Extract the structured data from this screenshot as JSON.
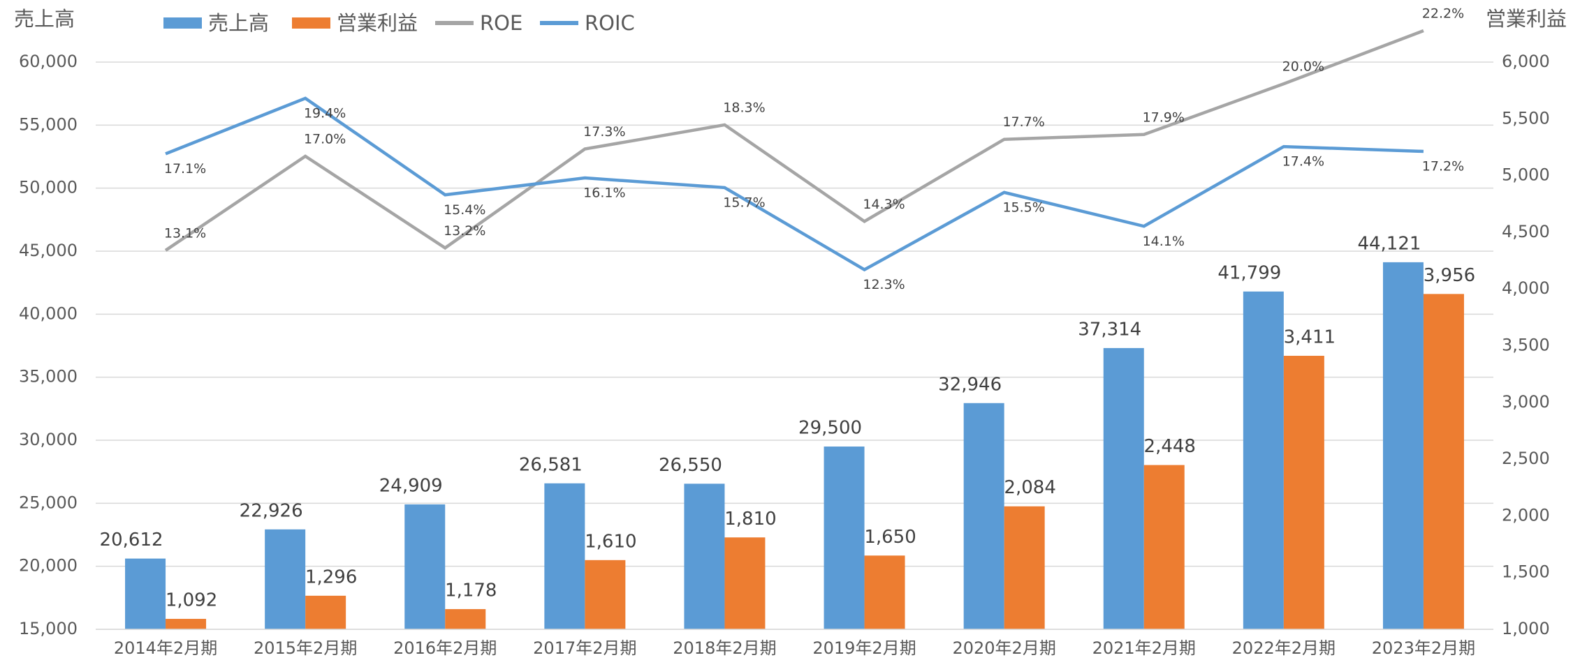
{
  "chart_data": {
    "type": "bar",
    "y_title": "売上高",
    "y2_title": "営業利益",
    "categories": [
      "2014年2月期",
      "2015年2月期",
      "2016年2月期",
      "2017年2月期",
      "2018年2月期",
      "2019年2月期",
      "2020年2月期",
      "2021年2月期",
      "2022年2月期",
      "2023年2月期"
    ],
    "series": [
      {
        "name": "売上高",
        "type": "bar",
        "axis": "y",
        "color": "#5b9bd5",
        "values": [
          20612,
          22926,
          24909,
          26581,
          26550,
          29500,
          32946,
          37314,
          41799,
          44121
        ],
        "value_labels": [
          "20,612",
          "22,926",
          "24,909",
          "26,581",
          "26,550",
          "29,500",
          "32,946",
          "37,314",
          "41,799",
          "44,121"
        ]
      },
      {
        "name": "営業利益",
        "type": "bar",
        "axis": "y2",
        "color": "#ed7d31",
        "values": [
          1092,
          1296,
          1178,
          1610,
          1810,
          1650,
          2084,
          2448,
          3411,
          3956
        ],
        "value_labels": [
          "1,092",
          "1,296",
          "1,178",
          "1,610",
          "1,810",
          "1,650",
          "2,084",
          "2,448",
          "3,411",
          "3,956"
        ]
      },
      {
        "name": "ROE",
        "type": "line",
        "axis": "y3",
        "color": "#a5a5a5",
        "values": [
          13.1,
          17.0,
          13.2,
          17.3,
          18.3,
          14.3,
          17.7,
          17.9,
          20.0,
          22.2
        ],
        "value_labels": [
          "13.1%",
          "17.0%",
          "13.2%",
          "17.3%",
          "18.3%",
          "14.3%",
          "17.7%",
          "17.9%",
          "20.0%",
          "22.2%"
        ]
      },
      {
        "name": "ROIC",
        "type": "line",
        "axis": "y3",
        "color": "#5b9bd5",
        "values": [
          17.1,
          19.4,
          15.4,
          16.1,
          15.7,
          12.3,
          15.5,
          14.1,
          17.4,
          17.2
        ],
        "value_labels": [
          "17.1%",
          "19.4%",
          "15.4%",
          "16.1%",
          "15.7%",
          "12.3%",
          "15.5%",
          "14.1%",
          "17.4%",
          "17.2%"
        ]
      }
    ],
    "ylim": [
      15000,
      60000
    ],
    "yticks": [
      {
        "value": 15000,
        "label": "15,000"
      },
      {
        "value": 20000,
        "label": "20,000"
      },
      {
        "value": 25000,
        "label": "25,000"
      },
      {
        "value": 30000,
        "label": "30,000"
      },
      {
        "value": 35000,
        "label": "35,000"
      },
      {
        "value": 40000,
        "label": "40,000"
      },
      {
        "value": 45000,
        "label": "45,000"
      },
      {
        "value": 50000,
        "label": "50,000"
      },
      {
        "value": 55000,
        "label": "55,000"
      },
      {
        "value": 60000,
        "label": "60,000"
      }
    ],
    "y2lim": [
      1000,
      6000
    ],
    "y2ticks": [
      {
        "value": 1000,
        "label": "1,000"
      },
      {
        "value": 1500,
        "label": "1,500"
      },
      {
        "value": 2000,
        "label": "2,000"
      },
      {
        "value": 2500,
        "label": "2,500"
      },
      {
        "value": 3000,
        "label": "3,000"
      },
      {
        "value": 3500,
        "label": "3,500"
      },
      {
        "value": 4000,
        "label": "4,000"
      },
      {
        "value": 4500,
        "label": "4,500"
      },
      {
        "value": 5000,
        "label": "5,000"
      },
      {
        "value": 5500,
        "label": "5,500"
      },
      {
        "value": 6000,
        "label": "6,000"
      }
    ],
    "y3lim": [
      -2.6,
      20.9
    ],
    "grid": true,
    "legend": "top-left"
  }
}
